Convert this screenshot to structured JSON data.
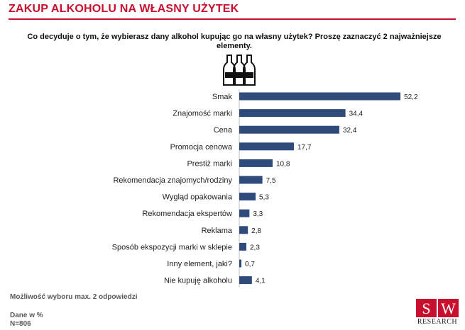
{
  "header": {
    "title": "ZAKUP ALKOHOLU NA WŁASNY UŻYTEK",
    "question": "Co decyduje o tym, że wybierasz dany alkohol kupując go na własny użytek? Proszę zaznaczyć 2 najważniejsze elementy."
  },
  "colors": {
    "accent": "#c8102e",
    "bar": "#2f4b7c"
  },
  "icon": "bottles-icon",
  "chart_data": {
    "type": "bar",
    "orientation": "horizontal",
    "title": "",
    "xlabel": "",
    "ylabel": "",
    "xlim": [
      0,
      60
    ],
    "categories": [
      "Smak",
      "Znajomość marki",
      "Cena",
      "Promocja cenowa",
      "Prestiż marki",
      "Rekomendacja znajomych/rodziny",
      "Wygląd opakowania",
      "Rekomendacja ekspertów",
      "Reklama",
      "Sposób ekspozycji marki w sklepie",
      "Inny element, jaki?",
      "Nie kupuję alkoholu"
    ],
    "values": [
      52.2,
      34.4,
      32.4,
      17.7,
      10.8,
      7.5,
      5.3,
      3.3,
      2.8,
      2.3,
      0.7,
      4.1
    ],
    "value_labels": [
      "52,2",
      "34,4",
      "32,4",
      "17,7",
      "10,8",
      "7,5",
      "5,3",
      "3,3",
      "2,8",
      "2,3",
      "0,7",
      "4,1"
    ]
  },
  "footer": {
    "note": "Możliwość wyboru max. 2 odpowiedzi",
    "unit": "Dane w %",
    "sample": "N=806"
  },
  "logo": {
    "letter_s": "S",
    "letter_w": "W",
    "subtitle": "RESEARCH"
  }
}
